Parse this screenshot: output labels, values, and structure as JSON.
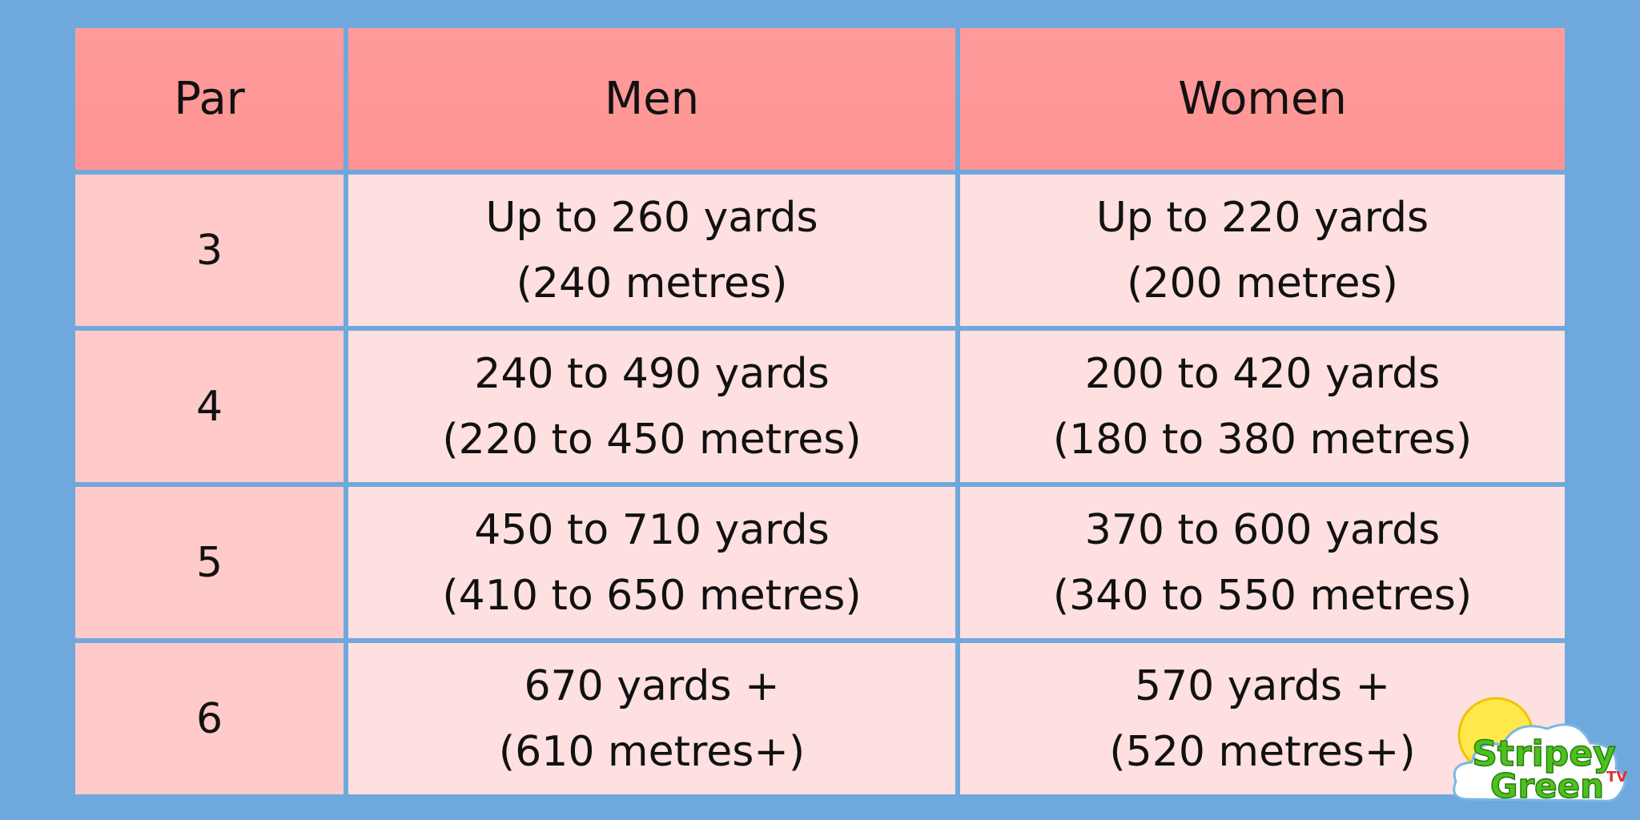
{
  "table": {
    "header": [
      "Par",
      "Men",
      "Women"
    ],
    "rows": [
      [
        [
          "3"
        ],
        [
          "Up to 260 yards",
          "(240 metres)"
        ],
        [
          "Up to 220 yards",
          "(200 metres)"
        ]
      ],
      [
        [
          "4"
        ],
        [
          "240 to 490 yards",
          "(220 to 450 metres)"
        ],
        [
          "200 to 420 yards",
          "(180 to 380 metres)"
        ]
      ],
      [
        [
          "5"
        ],
        [
          "450 to 710 yards",
          "(410 to 650 metres)"
        ],
        [
          "370 to 600 yards",
          "(340 to 550 metres)"
        ]
      ],
      [
        [
          "6"
        ],
        [
          "670 yards +",
          "(610 metres+)"
        ],
        [
          "570 yards +",
          "(520 metres+)"
        ]
      ]
    ]
  },
  "logo": {
    "line1": "Stripey",
    "line2": "Green",
    "badge": "TV"
  }
}
